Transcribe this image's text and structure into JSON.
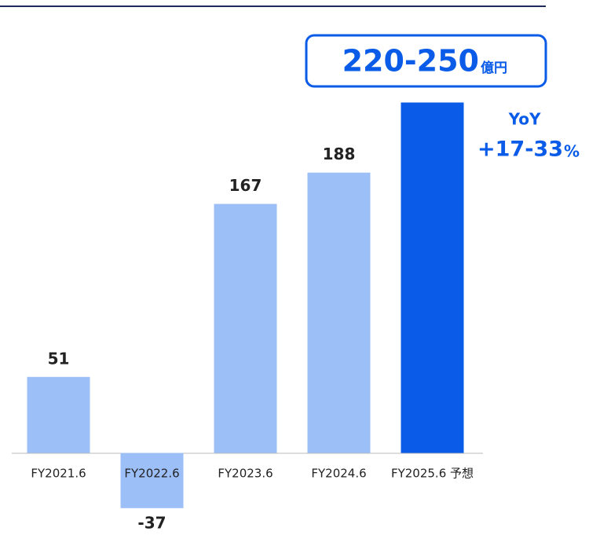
{
  "chart_data": {
    "type": "bar",
    "categories": [
      "FY2021.6",
      "FY2022.6",
      "FY2023.6",
      "FY2024.6",
      "FY2025.6 予想"
    ],
    "values": [
      51,
      -37,
      167,
      188,
      235
    ],
    "value_labels": [
      "51",
      "-37",
      "167",
      "188",
      null
    ],
    "colors": [
      "#9dbff8",
      "#9dbff8",
      "#9dbff8",
      "#9dbff8",
      "#0a5ce8"
    ],
    "ylim": [
      -55,
      250
    ],
    "annotations": {
      "forecast": {
        "main": "220-250",
        "unit": "億円"
      },
      "yoy": {
        "label": "YoY",
        "main": "+17-33",
        "unit": "%"
      }
    }
  }
}
